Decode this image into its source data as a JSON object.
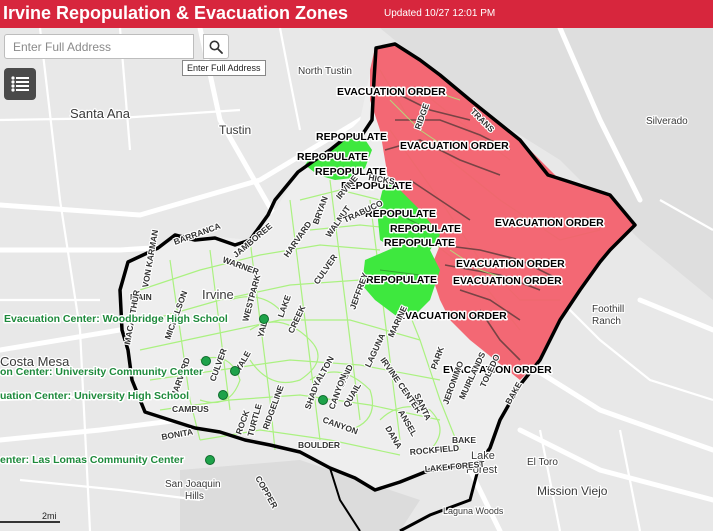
{
  "header": {
    "title": "Irvine Repopulation & Evacuation Zones",
    "updated": "Updated 10/27 12:01 PM"
  },
  "search": {
    "placeholder": "Enter Full Address",
    "tooltip": "Enter Full Address",
    "icon": "search-icon"
  },
  "menu": {
    "icon": "list-icon"
  },
  "colors": {
    "header": "#d7263d",
    "evacuation": "#f2606d",
    "repopulate": "#3ee83e",
    "boundary": "#000000",
    "roads": "#9cf07c",
    "center": "#1ea24a"
  },
  "places": {
    "north_tustin": "North Tustin",
    "santa_ana": "Santa Ana",
    "tustin": "Tustin",
    "silverado": "Silverado",
    "foothill_ranch": "Foothill\nRanch",
    "irvine": "Irvine",
    "costa_mesa": "Costa Mesa",
    "el_toro": "El Toro",
    "lake_forest": "Lake\nForest",
    "mission_viejo": "Mission Viejo",
    "san_joaquin_hills": "San Joaquin\nHills",
    "laguna_woods": "Laguna Woods"
  },
  "zones": {
    "evacuation_order": "EVACUATION ORDER",
    "repopulate": "REPOPULATE"
  },
  "centers": {
    "woodbridge": "Evacuation Center: Woodbridge High School",
    "university_community": "on Center: University Community Center",
    "university_high": "uation Center: University High School",
    "las_lomas": "enter: Las Lomas Community Center"
  },
  "streets": {
    "jamboree": "JAMBOREE",
    "barranca": "BARRANCA",
    "warner": "WARNER",
    "harvard": "HARVARD",
    "culver": "CULVER",
    "walnut": "WALNUT",
    "trabuco": "TRABUCO",
    "bryan": "BRYAN",
    "irvine": "IRVINE",
    "main": "MAIN",
    "macarthur": "MACARTHUR",
    "von_karman": "VON KARMAN",
    "michelson": "MICHELSON",
    "harvard2": "HARVARD",
    "jamboree2": "JAMBOREE",
    "campus": "CAMPUS",
    "culver2": "CULVER",
    "yale": "YALE",
    "lake": "LAKE",
    "creek": "CREEK",
    "westpark": "WESTPARK",
    "alton": "ALTON",
    "shady": "SHADY",
    "sand": "SAND",
    "canyon": "CANYON",
    "ridgeline": "RIDGELINE",
    "turtle": "TURTLE",
    "rock": "ROCK",
    "bonita": "BONITA",
    "boulder": "BOULDER",
    "canyon2": "CANYON",
    "quail": "QUAIL",
    "laguna": "LAGUNA",
    "marine": "MARINE",
    "irvine_center": "IRVINE CENTER",
    "jeffrey": "JEFFREY",
    "sand2": "SAND",
    "santa": "SANTA",
    "ana": "ANA",
    "ansel": "ANSEL",
    "dana": "DANA",
    "park": "PARK",
    "jeronimo": "JERONIMO",
    "muirlands": "MUIRLANDS",
    "toledo": "TOLEDO",
    "lake_forest_st": "LAKE FOREST",
    "rockfield": "ROCKFIELD",
    "bake": "BAKE",
    "bake2": "BAKE",
    "copper": "COPPER",
    "ridge": "RIDGE",
    "trans": "TRANS",
    "hicks": "HICKS"
  },
  "scale_label": "2mi"
}
